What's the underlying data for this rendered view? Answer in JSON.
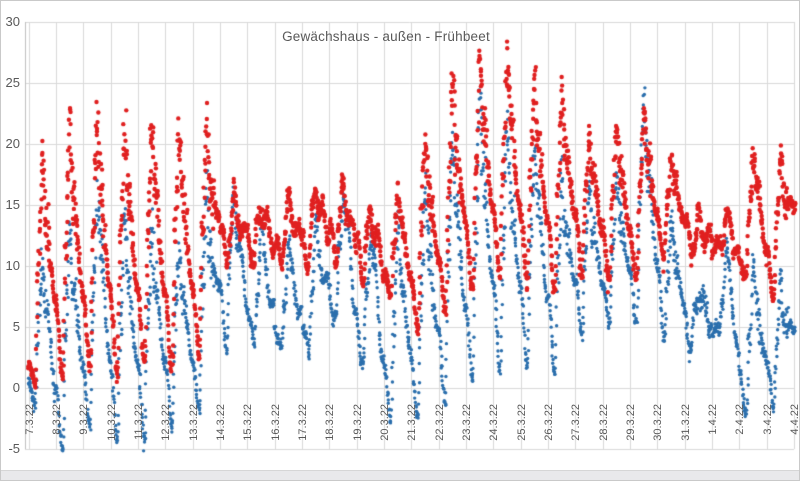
{
  "chart_data": {
    "type": "scatter",
    "title": "Gewächshaus - außen - Frühbeet",
    "ylabel": "",
    "xlabel": "",
    "ylim": [
      -5,
      30
    ],
    "y_tick_labels": [
      30,
      25,
      20,
      15,
      10,
      5,
      0,
      -5
    ],
    "grid": true,
    "legend_position": "none",
    "sample_interval_minutes": 15,
    "x_tick_labels": [
      "7.3.22",
      "8.3.22",
      "9.3.22",
      "10.3.22",
      "11.3.22",
      "12.3.22",
      "13.3.22",
      "14.3.22",
      "15.3.22",
      "16.3.22",
      "17.3.22",
      "18.3.22",
      "19.3.22",
      "20.3.22",
      "21.3.22",
      "22.3.22",
      "23.3.22",
      "24.3.22",
      "25.3.22",
      "26.3.22",
      "27.3.22",
      "28.3.22",
      "29.3.22",
      "30.3.22",
      "31.3.22",
      "1.4.22",
      "2.4.22",
      "3.4.22",
      "4.4.22"
    ],
    "cloudy_day_indices": [
      7,
      8,
      9,
      10,
      11,
      12,
      24,
      25
    ],
    "last_day_visible_fraction": 0.18,
    "series": [
      {
        "name": "red",
        "color": "#e02020",
        "marker_diameter_px": 4.4,
        "daily_min_max": [
          [
            0.5,
            19
          ],
          [
            1,
            21.5
          ],
          [
            1.5,
            22
          ],
          [
            1,
            21.5
          ],
          [
            2,
            21.3
          ],
          [
            1.5,
            21
          ],
          [
            2.5,
            21.8
          ],
          [
            10,
            15.5
          ],
          [
            10.5,
            15
          ],
          [
            10.5,
            15.2
          ],
          [
            10.5,
            16.5
          ],
          [
            11,
            16.3
          ],
          [
            9.5,
            14.5
          ],
          [
            7.5,
            16
          ],
          [
            5,
            20.5
          ],
          [
            6,
            25
          ],
          [
            8,
            27
          ],
          [
            9,
            27
          ],
          [
            8.5,
            25
          ],
          [
            8,
            24
          ],
          [
            9.5,
            20.5
          ],
          [
            9,
            21.5
          ],
          [
            9,
            22.5
          ],
          [
            10.5,
            19
          ],
          [
            11.5,
            13.5
          ],
          [
            11,
            14
          ],
          [
            9,
            19.3
          ],
          [
            7.5,
            18.8
          ],
          [
            13,
            19
          ]
        ]
      },
      {
        "name": "blue",
        "color": "#2b6fad",
        "marker_diameter_px": 3.4,
        "daily_min_max": [
          [
            -1,
            10.5
          ],
          [
            -5,
            13.5
          ],
          [
            -3.5,
            16
          ],
          [
            -4.5,
            14
          ],
          [
            -4,
            13
          ],
          [
            -3,
            11.5
          ],
          [
            -2,
            16
          ],
          [
            4,
            15.7
          ],
          [
            3,
            13
          ],
          [
            2.5,
            12
          ],
          [
            2.5,
            13.5
          ],
          [
            5.5,
            16.3
          ],
          [
            1.5,
            13
          ],
          [
            -3,
            13
          ],
          [
            -2.5,
            16.5
          ],
          [
            -1,
            20.5
          ],
          [
            0.5,
            23.5
          ],
          [
            1.5,
            21
          ],
          [
            2,
            20
          ],
          [
            1.5,
            17.5
          ],
          [
            4.5,
            16.5
          ],
          [
            5,
            17.5
          ],
          [
            5.5,
            23.5
          ],
          [
            4,
            13.5
          ],
          [
            3,
            8.5
          ],
          [
            4,
            11
          ],
          [
            -2.5,
            10
          ],
          [
            -1.5,
            8.5
          ],
          [
            3,
            7.5
          ]
        ]
      }
    ],
    "colors": {
      "gridline": "#d9d9d9",
      "axis_line": "#bfbfbf",
      "tick_label": "#595959",
      "title": "#595959",
      "plot_background": "#ffffff"
    }
  }
}
